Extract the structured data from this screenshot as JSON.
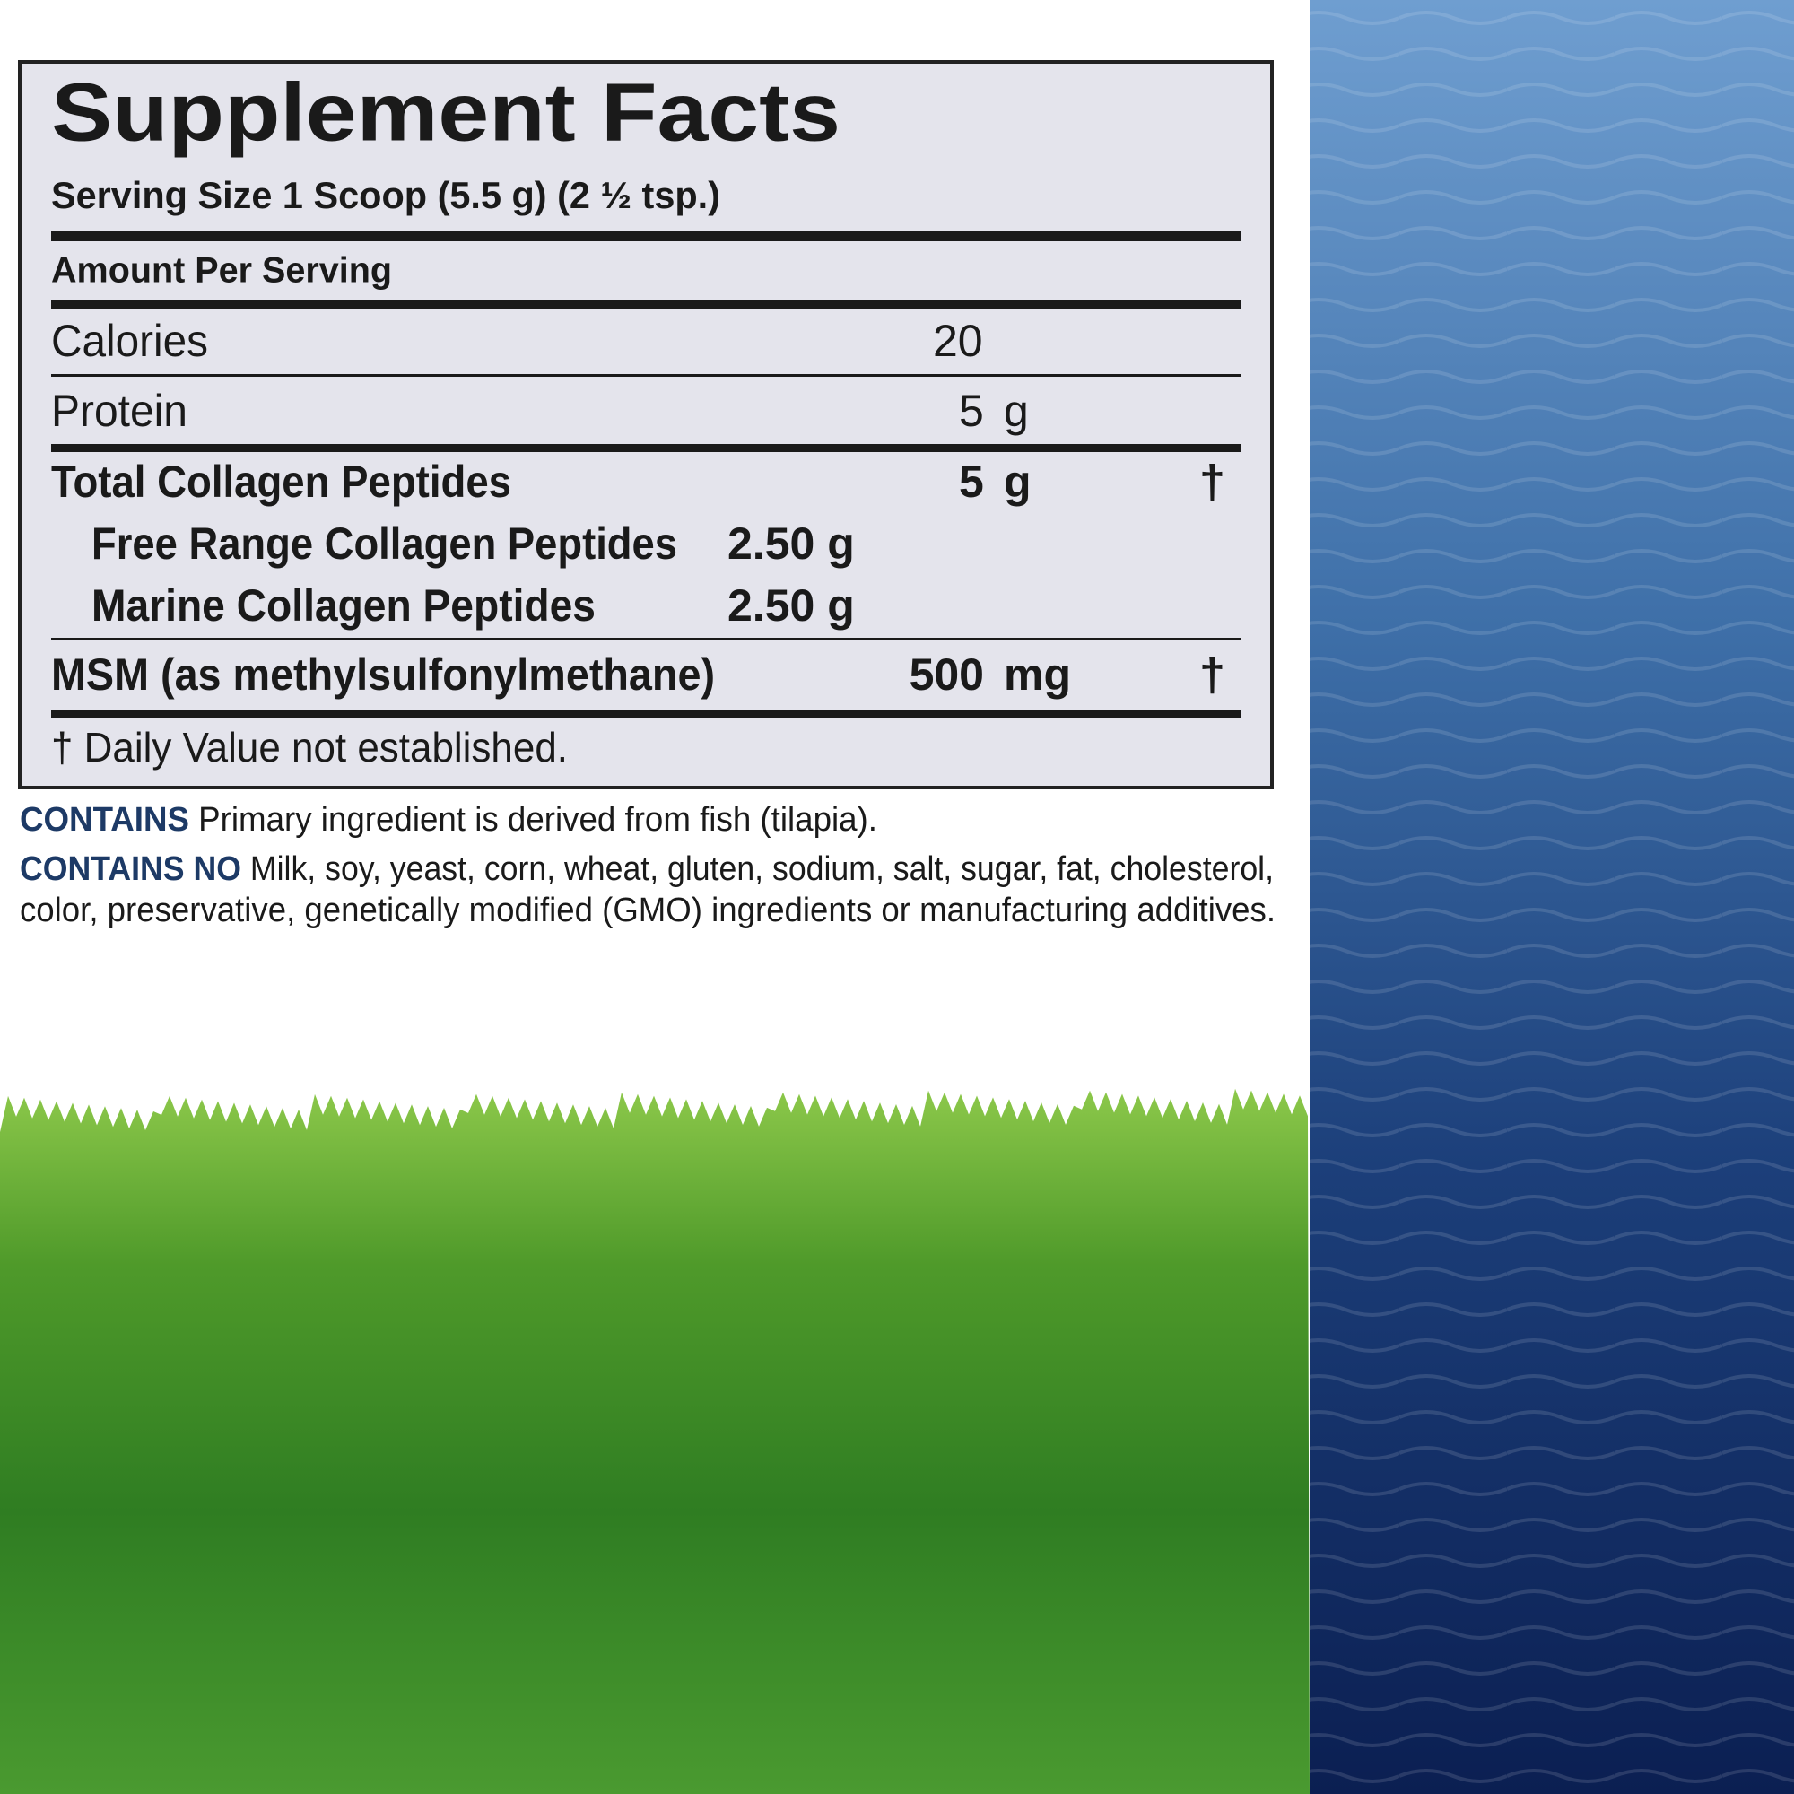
{
  "label": {
    "title": "Supplement Facts",
    "serving_size": "Serving Size 1 Scoop (5.5 g) (2 ½ tsp.)",
    "amount_header": "Amount Per Serving",
    "rows": [
      {
        "name": "Calories",
        "amount": "20"
      },
      {
        "name": "Protein",
        "amount": "5",
        "unit": "g"
      },
      {
        "name": "Total Collagen Peptides",
        "amount": "5",
        "unit": "g",
        "dv": "†"
      },
      {
        "name": "Free Range Collagen Peptides",
        "amount": "2.50 g"
      },
      {
        "name": "Marine Collagen Peptides",
        "amount": "2.50 g"
      },
      {
        "name": "MSM (as methylsulfonylmethane)",
        "amount": "500",
        "unit": "mg",
        "dv": "†"
      }
    ],
    "footnote": "† Daily Value not established."
  },
  "contains": {
    "label": "CONTAINS",
    "text": "Primary ingredient is derived from fish (tilapia)."
  },
  "contains_no": {
    "label": "CONTAINS NO",
    "line1": "Milk, soy, yeast, corn, wheat, gluten, sodium, salt, sugar, fat, cholesterol,",
    "line2": "color, preservative, genetically modified (GMO) ingredients or manufacturing additives."
  }
}
